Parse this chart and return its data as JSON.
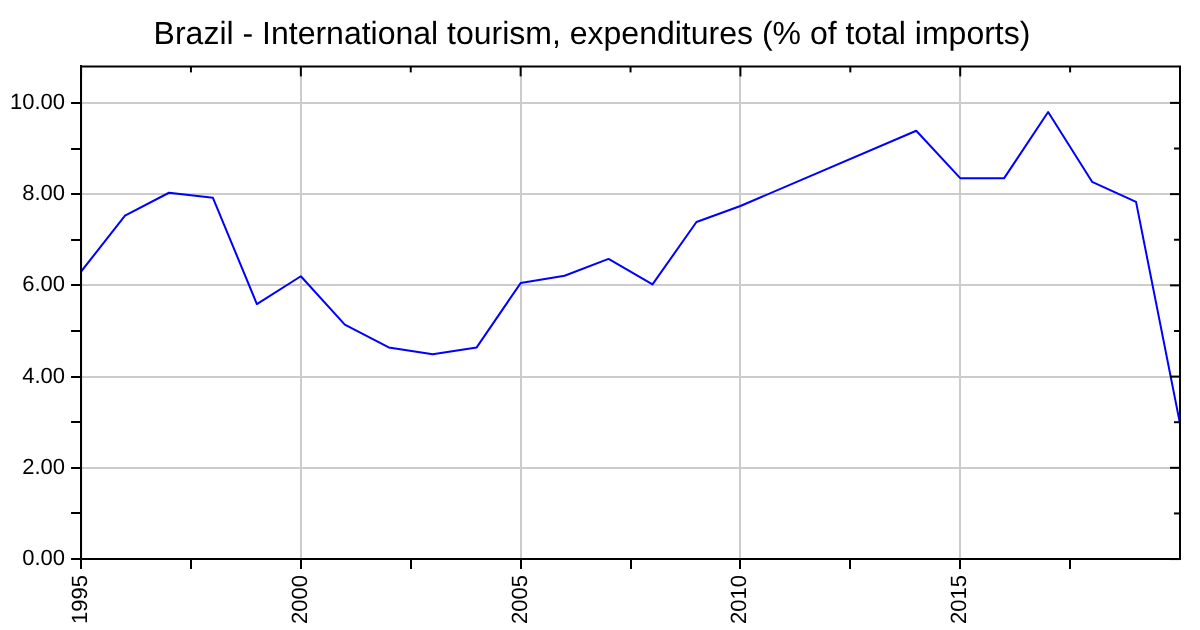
{
  "chart_data": {
    "type": "line",
    "title": "Brazil - International tourism, expenditures (% of total imports)",
    "x": [
      1995,
      1996,
      1997,
      1998,
      1999,
      2000,
      2001,
      2002,
      2003,
      2004,
      2005,
      2006,
      2007,
      2008,
      2009,
      2010,
      2014,
      2015,
      2016,
      2017,
      2018,
      2019,
      2020
    ],
    "series": [
      {
        "color": "#0000ff",
        "values": [
          6.3,
          7.53,
          8.03,
          7.92,
          5.59,
          6.2,
          5.14,
          4.64,
          4.49,
          4.64,
          6.05,
          6.21,
          6.58,
          6.02,
          7.39,
          7.74,
          9.39,
          8.35,
          8.35,
          9.8,
          8.27,
          7.83,
          2.97
        ]
      }
    ],
    "xlim": [
      1995,
      2020
    ],
    "xticks": [
      1995,
      {
        "value": 1997.5,
        "label": null
      },
      2000,
      {
        "value": 2002.5,
        "label": null
      },
      2005,
      {
        "value": 2007.5,
        "label": null
      },
      2010,
      {
        "value": 2012.5,
        "label": null
      },
      2015,
      {
        "value": 2017.5,
        "label": null
      }
    ],
    "ylim": [
      0,
      10.8
    ],
    "yticks": [
      {
        "value": 0,
        "label": "0.00"
      },
      {
        "value": 1,
        "label": null
      },
      {
        "value": 2,
        "label": "2.00"
      },
      {
        "value": 3,
        "label": null
      },
      {
        "value": 4,
        "label": "4.00"
      },
      {
        "value": 5,
        "label": null
      },
      {
        "value": 6,
        "label": "6.00"
      },
      {
        "value": 7,
        "label": null
      },
      {
        "value": 8,
        "label": "8.00"
      },
      {
        "value": 9,
        "label": null
      },
      {
        "value": 10,
        "label": "10.00"
      }
    ],
    "grid": true,
    "legend": false,
    "marker": "none",
    "line_style": "solid"
  }
}
